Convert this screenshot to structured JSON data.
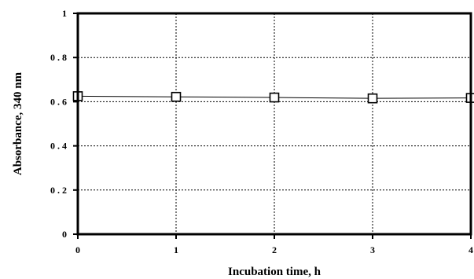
{
  "chart_data": {
    "type": "line",
    "title": "",
    "xlabel": "Incubation time, h",
    "ylabel": "Absorbance, 340 nm",
    "xlim": [
      0,
      4
    ],
    "ylim": [
      0,
      1
    ],
    "x_ticks": [
      "0",
      "1",
      "2",
      "3",
      "4"
    ],
    "y_ticks": [
      "0",
      "0 . 2",
      "0 . 4",
      "0 . 6",
      "0 . 8",
      "1"
    ],
    "grid": true,
    "legend": "none",
    "series": [
      {
        "marker": "open-square",
        "x": [
          0,
          1,
          2,
          3,
          4
        ],
        "y": [
          0.625,
          0.622,
          0.619,
          0.615,
          0.617
        ]
      }
    ]
  }
}
